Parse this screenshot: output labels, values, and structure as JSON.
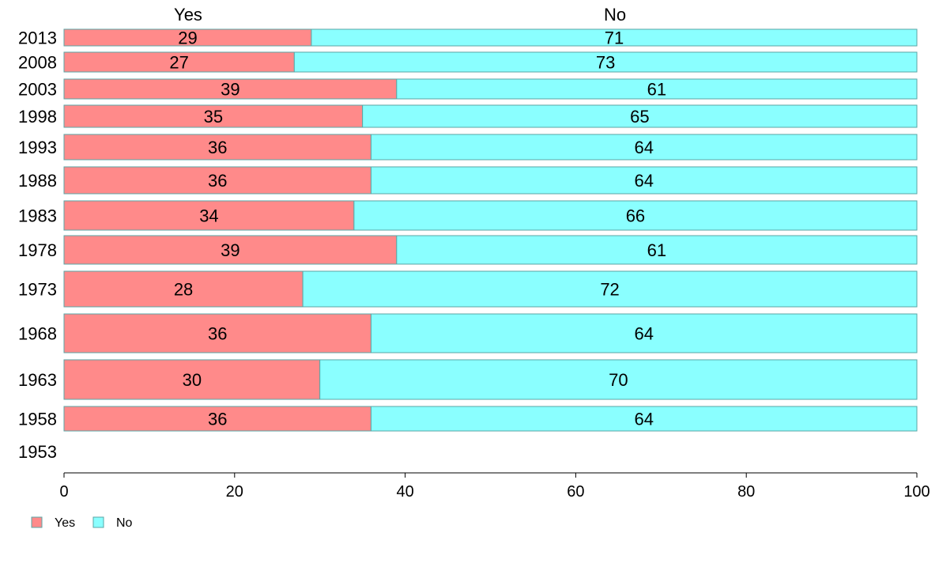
{
  "chart_data": {
    "type": "bar",
    "orientation": "horizontal",
    "stacked": true,
    "normalized_to": 100,
    "categories": [
      "2013",
      "2008",
      "2003",
      "1998",
      "1993",
      "1988",
      "1983",
      "1978",
      "1973",
      "1968",
      "1963",
      "1958",
      "1953"
    ],
    "series": [
      {
        "name": "Yes",
        "color": "#ff8a8a",
        "values": [
          29,
          27,
          39,
          35,
          36,
          36,
          34,
          39,
          28,
          36,
          30,
          36,
          null
        ]
      },
      {
        "name": "No",
        "color": "#8affff",
        "values": [
          71,
          73,
          61,
          65,
          64,
          64,
          66,
          61,
          72,
          64,
          70,
          64,
          null
        ]
      }
    ],
    "top_labels": [
      "Yes",
      "No"
    ],
    "xlim": [
      0,
      100
    ],
    "xticks": [
      0,
      20,
      40,
      60,
      80,
      100
    ],
    "xlabel": "",
    "ylabel": "",
    "grid": false,
    "legend": {
      "position": "bottom-left",
      "entries": [
        "Yes",
        "No"
      ]
    },
    "bar_stroke_color": "#5aa6a6"
  }
}
